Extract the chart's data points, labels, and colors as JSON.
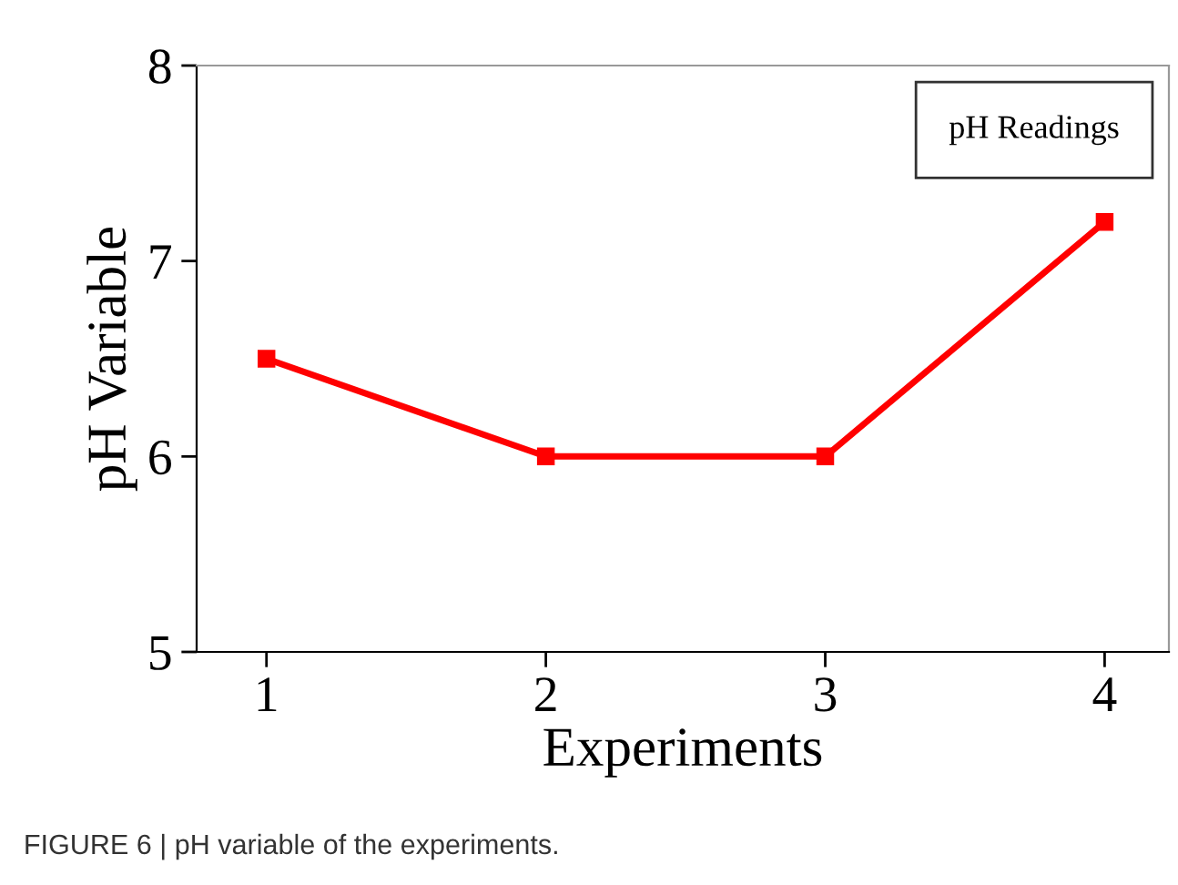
{
  "chart_data": {
    "type": "line",
    "xlabel": "Experiments",
    "ylabel": "pH Variable",
    "x": [
      1,
      2,
      3,
      4
    ],
    "series": [
      {
        "name": "pH Readings",
        "color": "#ff0000",
        "values": [
          6.5,
          6.0,
          6.0,
          7.2
        ]
      }
    ],
    "xlim": [
      0.75,
      4.23
    ],
    "ylim": [
      5,
      8
    ],
    "xticks": [
      1,
      2,
      3,
      4
    ],
    "yticks": [
      5,
      6,
      7,
      8
    ],
    "marker": "square",
    "line_style": "solid",
    "legend": "top right",
    "grid": false,
    "annotations": [
      "FIGURE 6 | pH variable of the experiments."
    ]
  }
}
